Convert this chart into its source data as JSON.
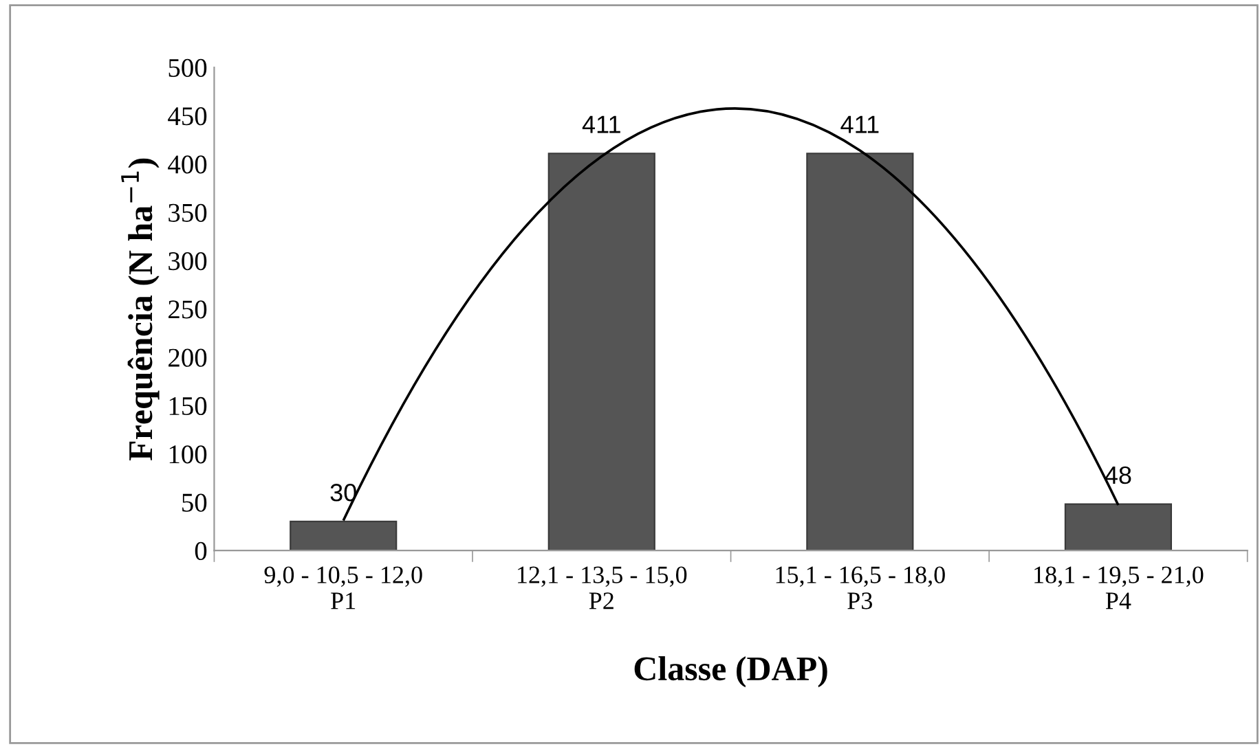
{
  "chart_data": {
    "type": "bar",
    "xlabel": "Classe (DAP)",
    "ylabel": "Frequência (N ha$^{−1}$)",
    "categories": [
      "9,0 - 10,5 - 12,0\nP1",
      "12,1 - 13,5 - 15,0\nP2",
      "15,1 - 16,5 - 18,0\nP3",
      "18,1 - 19,5 - 21,0\nP4"
    ],
    "series": [
      {
        "color": "#555555",
        "values": [
          30,
          411,
          411,
          48
        ],
        "value_labels": [
          "30",
          "411",
          "411",
          "48"
        ]
      },
      {
        "type": "line",
        "color": "#000000",
        "values": [
          31,
          408,
          414,
          47
        ]
      }
    ],
    "ylim": [
      0,
      500
    ],
    "yticks": [
      0,
      50,
      100,
      150,
      200,
      250,
      300,
      350,
      400,
      450,
      500
    ],
    "grid": false,
    "legend": false,
    "marker": "none",
    "line_style": "solid"
  }
}
